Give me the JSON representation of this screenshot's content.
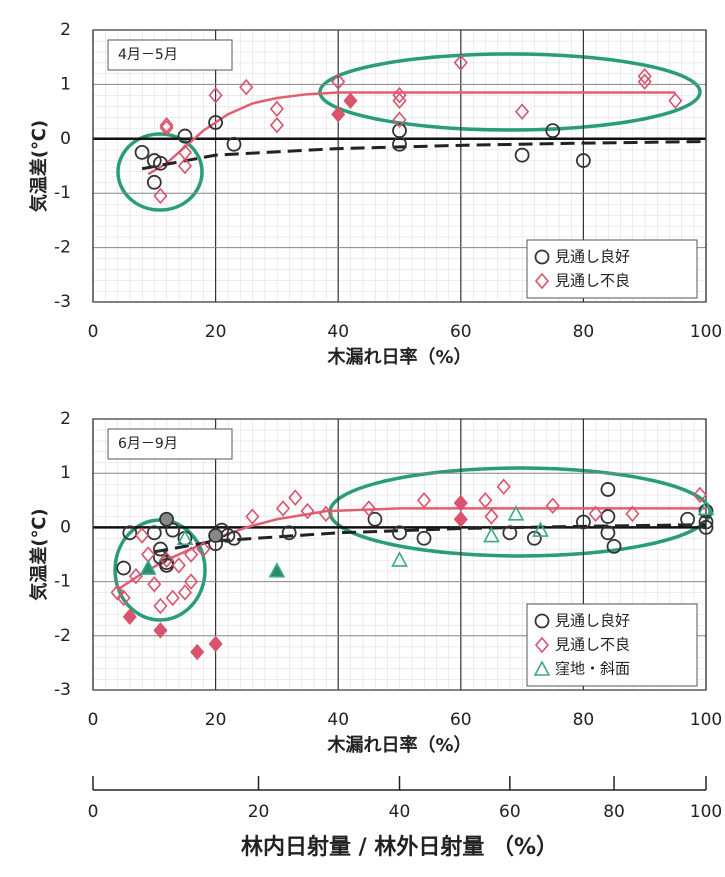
{
  "chart_data": [
    {
      "type": "scatter",
      "title": "4月－5月",
      "xlabel": "木漏れ日率（%）",
      "ylabel": "気温差(℃)",
      "xlim": [
        0,
        100
      ],
      "ylim": [
        -3,
        2
      ],
      "xticks": [
        0,
        20,
        40,
        60,
        80,
        100
      ],
      "yticks": [
        -3,
        -2,
        -1,
        0,
        1,
        2
      ],
      "grid": true,
      "legend": "lower right",
      "series": [
        {
          "name": "見通し良好",
          "marker": "circle",
          "color": "#333333",
          "x": [
            8,
            10,
            10,
            11,
            15,
            20,
            23,
            50,
            50,
            70,
            75,
            80
          ],
          "values": [
            -0.25,
            -0.8,
            -0.4,
            -0.45,
            0.05,
            0.3,
            -0.1,
            0.15,
            -0.1,
            -0.3,
            0.15,
            -0.4
          ],
          "filled": [
            false,
            false,
            false,
            false,
            false,
            false,
            false,
            false,
            false,
            false,
            false,
            false
          ]
        },
        {
          "name": "見通し不良",
          "marker": "diamond",
          "color": "#d9536c",
          "x": [
            11,
            12,
            12,
            15,
            15,
            20,
            25,
            30,
            30,
            40,
            50,
            50,
            50,
            60,
            70,
            90,
            90,
            95,
            40,
            42
          ],
          "values": [
            -1.05,
            0.25,
            0.2,
            -0.5,
            -0.25,
            0.8,
            0.95,
            0.55,
            0.25,
            1.05,
            0.8,
            0.7,
            0.35,
            1.4,
            0.5,
            1.15,
            1.05,
            0.7,
            0.45,
            0.7
          ],
          "filled": [
            false,
            false,
            false,
            false,
            false,
            false,
            false,
            false,
            false,
            false,
            false,
            false,
            false,
            false,
            false,
            false,
            false,
            false,
            true,
            true
          ]
        }
      ],
      "trend_lines": [
        {
          "color": "#e06070",
          "dashed": false,
          "x": [
            9,
            12,
            15,
            18,
            22,
            26,
            30,
            35,
            40,
            50,
            70,
            95
          ],
          "values": [
            -0.65,
            -0.45,
            -0.15,
            0.15,
            0.45,
            0.65,
            0.75,
            0.82,
            0.85,
            0.85,
            0.85,
            0.85
          ]
        },
        {
          "color": "#222222",
          "dashed": true,
          "x": [
            8,
            20,
            40,
            60,
            80,
            100
          ],
          "values": [
            -0.55,
            -0.3,
            -0.18,
            -0.12,
            -0.08,
            -0.05
          ]
        }
      ]
    },
    {
      "type": "scatter",
      "title": "6月－9月",
      "xlabel": "木漏れ日率（%）",
      "ylabel": "気温差(℃)",
      "xlim": [
        0,
        100
      ],
      "ylim": [
        -3,
        2
      ],
      "xticks": [
        0,
        20,
        40,
        60,
        80,
        100
      ],
      "yticks": [
        -3,
        -2,
        -1,
        0,
        1,
        2
      ],
      "grid": true,
      "legend": "lower right",
      "series": [
        {
          "name": "見通し良好",
          "marker": "circle",
          "color": "#333333",
          "x": [
            5,
            6,
            10,
            11,
            11,
            12,
            12,
            13,
            15,
            20,
            21,
            22,
            23,
            32,
            46,
            50,
            54,
            68,
            72,
            80,
            84,
            84,
            84,
            85,
            97,
            100,
            100,
            100,
            12,
            20
          ],
          "values": [
            -0.75,
            -0.1,
            -0.1,
            -0.4,
            -0.55,
            -0.7,
            -0.65,
            -0.05,
            -0.2,
            -0.3,
            -0.05,
            -0.15,
            -0.2,
            -0.1,
            0.15,
            -0.1,
            -0.2,
            -0.1,
            -0.2,
            0.1,
            0.7,
            0.2,
            -0.1,
            -0.35,
            0.15,
            0.1,
            0,
            0.3,
            0.15,
            -0.15
          ],
          "filled": [
            false,
            false,
            false,
            false,
            false,
            false,
            false,
            false,
            false,
            false,
            false,
            false,
            false,
            false,
            false,
            false,
            false,
            false,
            false,
            false,
            false,
            false,
            false,
            false,
            false,
            false,
            false,
            false,
            true,
            true
          ]
        },
        {
          "name": "見通し不良",
          "marker": "diamond",
          "color": "#d9536c",
          "x": [
            4,
            5,
            7,
            8,
            9,
            10,
            11,
            12,
            13,
            14,
            15,
            16,
            16,
            18,
            26,
            31,
            33,
            35,
            38,
            45,
            54,
            64,
            65,
            67,
            75,
            82,
            88,
            99,
            6,
            11,
            17,
            20,
            60,
            60
          ],
          "values": [
            -1.2,
            -1.3,
            -0.9,
            -0.15,
            -0.5,
            -1.05,
            -1.45,
            -0.6,
            -1.3,
            -0.7,
            -1.2,
            -1.0,
            -0.5,
            -0.4,
            0.2,
            0.35,
            0.55,
            0.3,
            0.25,
            0.35,
            0.5,
            0.5,
            0.2,
            0.75,
            0.4,
            0.25,
            0.25,
            0.6,
            -1.65,
            -1.9,
            -2.3,
            -2.15,
            0.45,
            0.15
          ],
          "filled": [
            false,
            false,
            false,
            false,
            false,
            false,
            false,
            false,
            false,
            false,
            false,
            false,
            false,
            false,
            false,
            false,
            false,
            false,
            false,
            false,
            false,
            false,
            false,
            false,
            false,
            false,
            false,
            false,
            true,
            true,
            true,
            true,
            true,
            true
          ]
        },
        {
          "name": "窪地・斜面",
          "marker": "triangle",
          "color": "#3aa889",
          "x": [
            15,
            50,
            65,
            69,
            73,
            100,
            9,
            30
          ],
          "values": [
            -0.2,
            -0.6,
            -0.15,
            0.25,
            -0.05,
            0.35,
            -0.75,
            -0.8
          ],
          "filled": [
            false,
            false,
            false,
            false,
            false,
            false,
            true,
            true
          ]
        }
      ],
      "trend_lines": [
        {
          "color": "#e06070",
          "dashed": false,
          "x": [
            4,
            8,
            12,
            16,
            20,
            25,
            30,
            38,
            50,
            70,
            100
          ],
          "values": [
            -1.15,
            -0.85,
            -0.6,
            -0.4,
            -0.2,
            0,
            0.15,
            0.3,
            0.35,
            0.35,
            0.35
          ]
        },
        {
          "color": "#222222",
          "dashed": true,
          "x": [
            10,
            20,
            40,
            60,
            80,
            100
          ],
          "values": [
            -0.45,
            -0.25,
            -0.1,
            -0.02,
            0.02,
            0.05
          ]
        }
      ],
      "secondary_xaxis": {
        "label": "林内日射量 / 林外日射量 （%）",
        "ticks": [
          0,
          20,
          40,
          60,
          80,
          100
        ],
        "tick_positions": [
          0,
          27,
          50,
          68,
          85,
          100
        ]
      }
    }
  ]
}
